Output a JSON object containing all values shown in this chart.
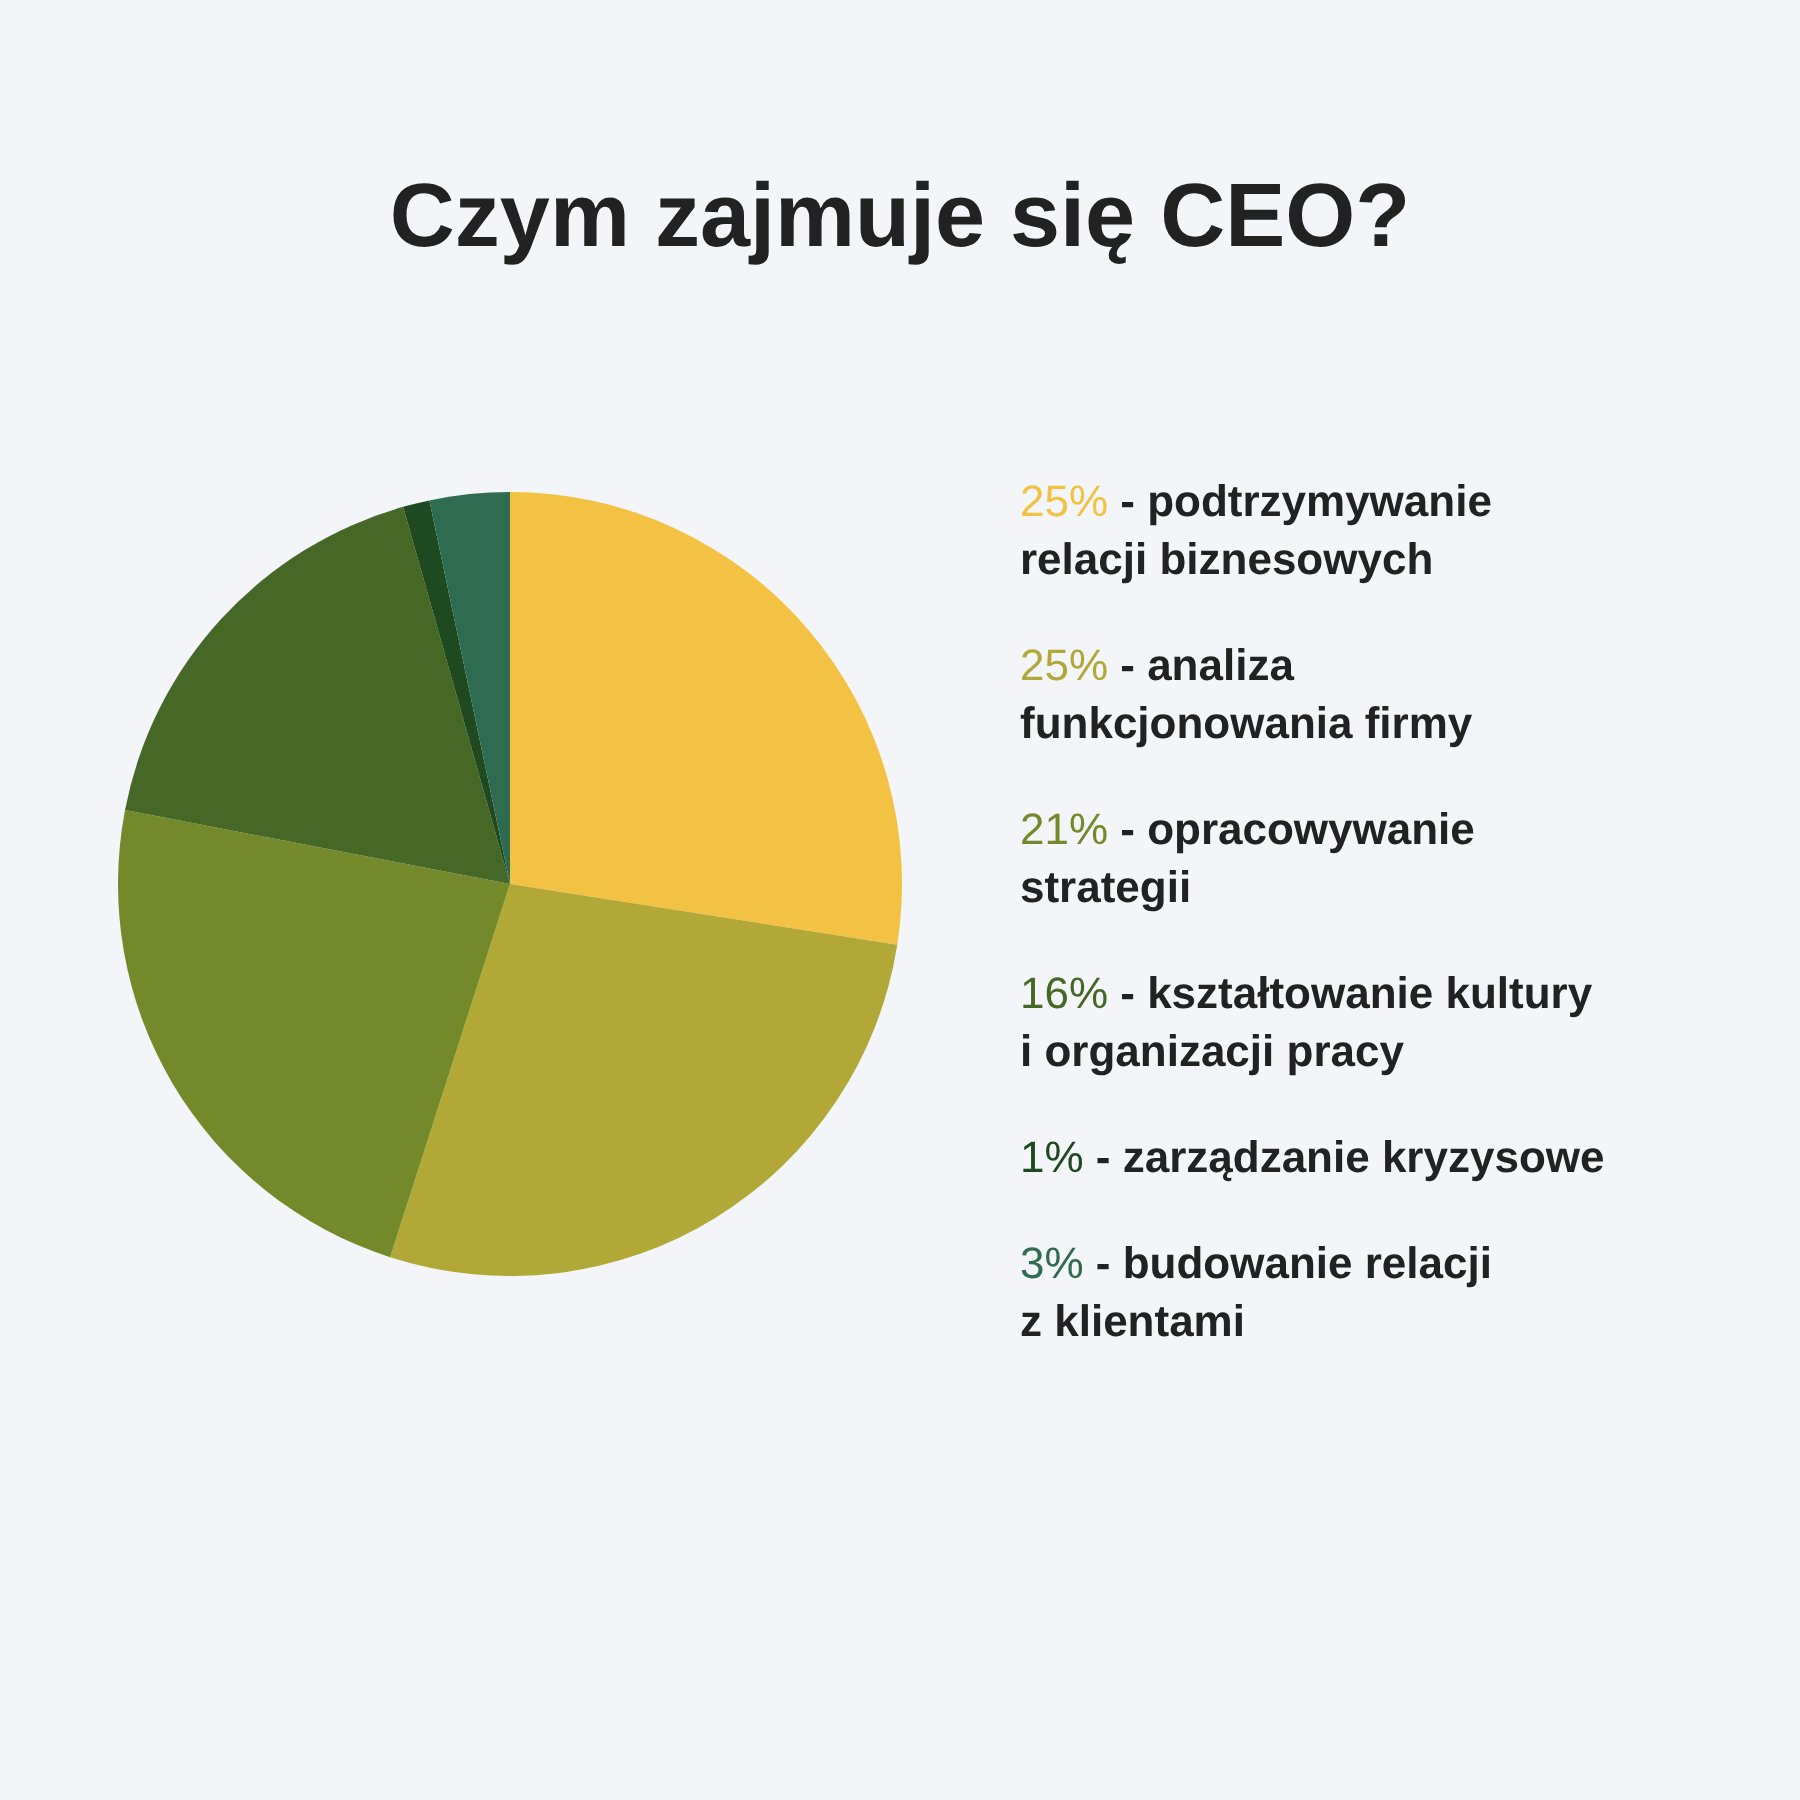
{
  "chart_data": {
    "type": "pie",
    "title": "Czym zajmuje się CEO?",
    "categories": [
      "25% - podtrzymywanie relacji biznesowych",
      "25% - analiza funkcjonowania firmy",
      "21% - opracowywanie strategii",
      "16% - kształtowanie kultury i organizacji pracy",
      "1% - zarządzanie kryzysowe",
      "3% - budowanie relacji z klientami"
    ],
    "values": [
      25,
      25,
      21,
      16,
      1,
      3
    ],
    "colors": [
      "#f4c242",
      "#b1a838",
      "#748a2a",
      "#456826",
      "#1f4a1f",
      "#2e6b50"
    ]
  }
}
